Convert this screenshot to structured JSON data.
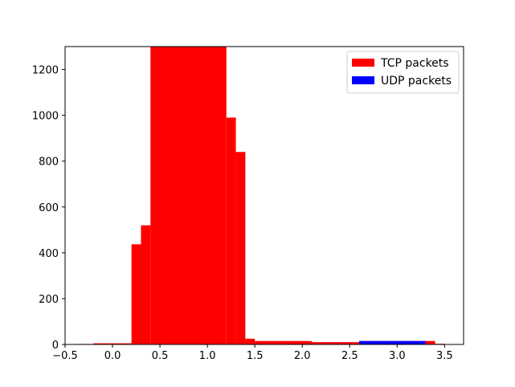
{
  "chart_data": {
    "type": "bar",
    "xlim": [
      -0.5,
      3.7
    ],
    "ylim": [
      0,
      1300
    ],
    "x_ticks": [
      -0.5,
      0.0,
      0.5,
      1.0,
      1.5,
      2.0,
      2.5,
      3.0,
      3.5
    ],
    "x_tick_labels": [
      "−0.5",
      "0.0",
      "0.5",
      "1.0",
      "1.5",
      "2.0",
      "2.5",
      "3.0",
      "3.5"
    ],
    "y_ticks": [
      0,
      200,
      400,
      600,
      800,
      1000,
      1200
    ],
    "y_tick_labels": [
      "0",
      "200",
      "400",
      "600",
      "800",
      "1000",
      "1200"
    ],
    "legend_position": "top-right",
    "series": [
      {
        "name": "TCP packets",
        "color": "#ff0000",
        "bins": [
          {
            "x0": -0.4,
            "x1": -0.2,
            "value": 2
          },
          {
            "x0": -0.2,
            "x1": 0.0,
            "value": 5
          },
          {
            "x0": 0.0,
            "x1": 0.2,
            "value": 5
          },
          {
            "x0": 0.2,
            "x1": 0.3,
            "value": 437
          },
          {
            "x0": 0.3,
            "x1": 0.4,
            "value": 520
          },
          {
            "x0": 0.4,
            "x1": 1.2,
            "value": 1300
          },
          {
            "x0": 1.2,
            "x1": 1.3,
            "value": 990
          },
          {
            "x0": 1.3,
            "x1": 1.4,
            "value": 840
          },
          {
            "x0": 1.4,
            "x1": 1.5,
            "value": 25
          },
          {
            "x0": 1.5,
            "x1": 2.1,
            "value": 15
          },
          {
            "x0": 2.1,
            "x1": 2.6,
            "value": 10
          },
          {
            "x0": 2.6,
            "x1": 3.4,
            "value": 15
          },
          {
            "x0": 3.4,
            "x1": 3.5,
            "value": 3
          }
        ]
      },
      {
        "name": "UDP packets",
        "color": "#0000ff",
        "bins": [
          {
            "x0": 2.6,
            "x1": 3.3,
            "value": 15
          }
        ]
      }
    ]
  }
}
